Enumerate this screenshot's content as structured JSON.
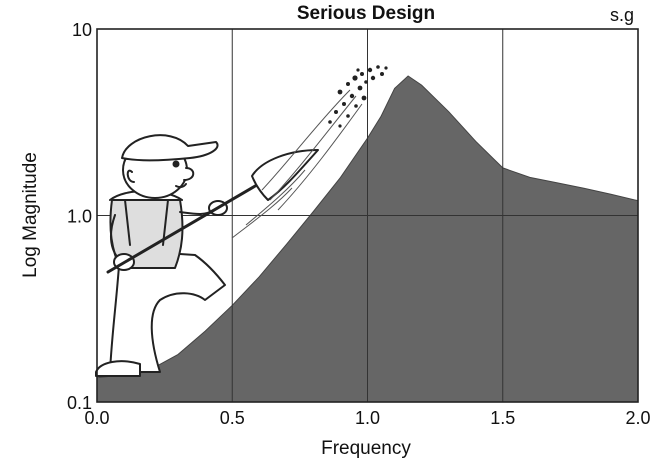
{
  "chart_data": {
    "type": "area",
    "title": "Serious Design",
    "corner_label": "s.g",
    "xlabel": "Frequency",
    "ylabel": "Log Magnitude",
    "xlim": [
      0.0,
      2.0
    ],
    "ylim": [
      0.1,
      10
    ],
    "y_scale": "log",
    "grid": true,
    "x_ticks": [
      0.0,
      0.5,
      1.0,
      1.5,
      2.0
    ],
    "x_tick_labels": [
      "0.0",
      "0.5",
      "1.0",
      "1.5",
      "2.0"
    ],
    "y_ticks": [
      0.1,
      1.0,
      10
    ],
    "y_tick_labels": [
      "0.1",
      "1.0",
      "10"
    ],
    "fill_color": "#666666",
    "series": [
      {
        "x": [
          0.0,
          0.1,
          0.2,
          0.3,
          0.4,
          0.5,
          0.6,
          0.7,
          0.8,
          0.9,
          1.0,
          1.05,
          1.1,
          1.15,
          1.2,
          1.3,
          1.4,
          1.5,
          1.6,
          1.7,
          1.8,
          1.9,
          2.0
        ],
        "y": [
          0.135,
          0.14,
          0.15,
          0.18,
          0.24,
          0.33,
          0.47,
          0.7,
          1.05,
          1.6,
          2.6,
          3.4,
          4.8,
          5.6,
          5.0,
          3.6,
          2.5,
          1.8,
          1.6,
          1.5,
          1.4,
          1.3,
          1.2
        ]
      }
    ]
  },
  "illustration": {
    "subject": "cartoon worker with cap and overalls shoveling the curve"
  }
}
